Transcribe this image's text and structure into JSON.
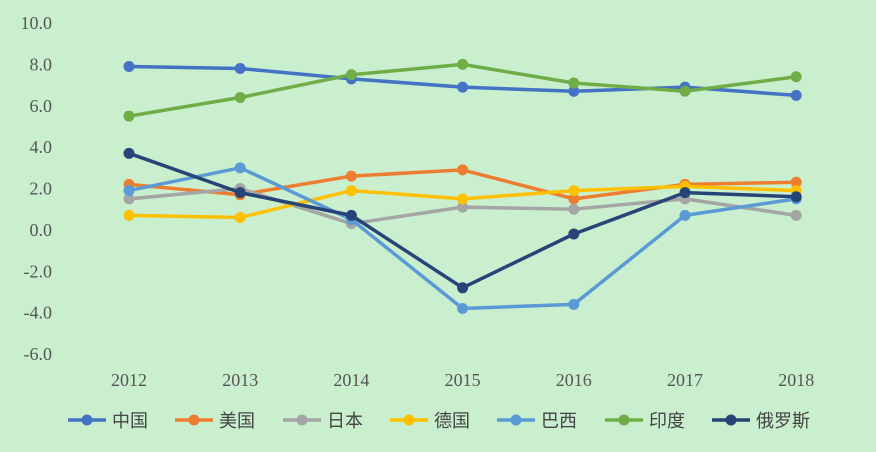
{
  "chart_data": {
    "type": "line",
    "title": "",
    "xlabel": "",
    "ylabel": "",
    "categories": [
      "2012",
      "2013",
      "2014",
      "2015",
      "2016",
      "2017",
      "2018"
    ],
    "y_tick_labels": [
      "10.0",
      "8.0",
      "6.0",
      "4.0",
      "2.0",
      "0.0",
      "-2.0",
      "-4.0",
      "-6.0"
    ],
    "ylim": [
      -6,
      10
    ],
    "grid": false,
    "legend_position": "bottom",
    "series": [
      {
        "name": "中国",
        "color": "#4472c4",
        "values": [
          7.9,
          7.8,
          7.3,
          6.9,
          6.7,
          6.9,
          6.5
        ]
      },
      {
        "name": "美国",
        "color": "#ed7d31",
        "values": [
          2.2,
          1.7,
          2.6,
          2.9,
          1.5,
          2.2,
          2.3
        ]
      },
      {
        "name": "日本",
        "color": "#a5a5a5",
        "values": [
          1.5,
          2.0,
          0.3,
          1.1,
          1.0,
          1.5,
          0.7
        ]
      },
      {
        "name": "德国",
        "color": "#ffc000",
        "values": [
          0.7,
          0.6,
          1.9,
          1.5,
          1.9,
          2.1,
          1.9
        ]
      },
      {
        "name": "巴西",
        "color": "#5b9bd5",
        "values": [
          1.9,
          3.0,
          0.5,
          -3.8,
          -3.6,
          0.7,
          1.5
        ]
      },
      {
        "name": "印度",
        "color": "#70ad47",
        "values": [
          5.5,
          6.4,
          7.5,
          8.0,
          7.1,
          6.7,
          7.4
        ]
      },
      {
        "name": "俄罗斯",
        "color": "#264478",
        "values": [
          3.7,
          1.8,
          0.7,
          -2.8,
          -0.2,
          1.8,
          1.6
        ]
      }
    ]
  }
}
